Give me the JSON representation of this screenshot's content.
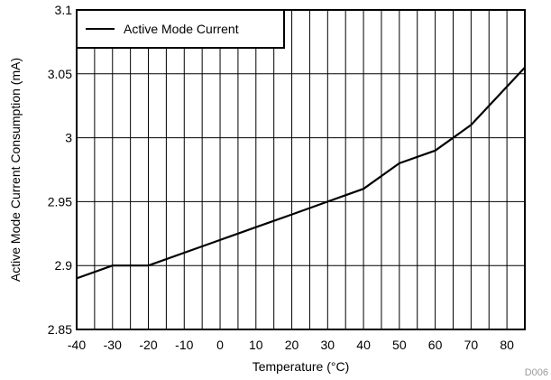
{
  "chart_data": {
    "type": "line",
    "title": "",
    "xlabel": "Temperature (°C)",
    "ylabel": "Active Mode Current Consumption (mA)",
    "xlim": [
      -40,
      85
    ],
    "ylim": [
      2.85,
      3.1
    ],
    "x_ticks": [
      "-40",
      "-30",
      "-20",
      "-10",
      "0",
      "10",
      "20",
      "30",
      "40",
      "50",
      "60",
      "70",
      "80"
    ],
    "y_ticks": [
      "2.85",
      "2.9",
      "2.95",
      "3",
      "3.05",
      "3.1"
    ],
    "grid": true,
    "legend_position": "top-left",
    "series": [
      {
        "name": "Active Mode Current",
        "color": "#000000",
        "x": [
          -40,
          -30,
          -20,
          -10,
          0,
          10,
          20,
          30,
          40,
          50,
          60,
          70,
          85
        ],
        "y": [
          2.89,
          2.9,
          2.9,
          2.91,
          2.92,
          2.93,
          2.94,
          2.95,
          2.96,
          2.98,
          2.99,
          3.01,
          3.055
        ]
      }
    ]
  },
  "footnote": "D006"
}
